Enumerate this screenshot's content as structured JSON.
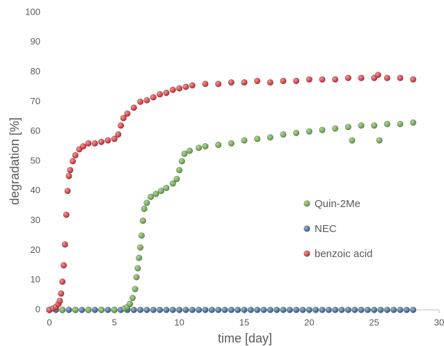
{
  "chart_data": {
    "type": "scatter",
    "xlabel": "time [day]",
    "ylabel": "degradation [%]",
    "xlim": [
      0,
      30
    ],
    "xticks": [
      0,
      5,
      10,
      15,
      20,
      25,
      30
    ],
    "ylim": [
      0,
      100
    ],
    "yticks": [
      0,
      10,
      20,
      30,
      40,
      50,
      60,
      70,
      80,
      90,
      100
    ],
    "grid": false,
    "legend": "center-right",
    "series": [
      {
        "name": "Quin-2Me",
        "color": "#5b9b3d",
        "x": [
          0,
          1,
          2,
          3,
          4,
          5,
          5.8,
          6.0,
          6.2,
          6.4,
          6.6,
          6.7,
          6.8,
          6.9,
          7.0,
          7.1,
          7.2,
          7.3,
          7.5,
          7.8,
          8.2,
          8.6,
          9,
          9.5,
          9.8,
          10,
          10.2,
          10.4,
          10.8,
          11.5,
          12,
          13,
          14,
          15,
          16,
          17,
          18,
          19,
          20,
          21,
          22,
          23,
          23.3,
          24,
          25,
          25.4,
          26,
          27,
          28
        ],
        "values": [
          0,
          0,
          0,
          0,
          0,
          0,
          0.5,
          1,
          2,
          4,
          7,
          11,
          14,
          17.5,
          21,
          25,
          30,
          34,
          36,
          38,
          39,
          40,
          41,
          42.5,
          44,
          47,
          50,
          52.5,
          53.5,
          54.5,
          55,
          55.5,
          56,
          57,
          57.5,
          58,
          59,
          59.5,
          60,
          60.5,
          61,
          61.5,
          57,
          62,
          62,
          57,
          62.5,
          62.5,
          63
        ]
      },
      {
        "name": "NEC",
        "color": "#2f5b8d",
        "x": [
          0,
          0.5,
          1,
          1.5,
          2,
          2.5,
          3,
          3.5,
          4,
          4.5,
          5,
          5.5,
          6,
          6.5,
          7,
          7.5,
          8,
          8.5,
          9,
          9.5,
          10,
          10.5,
          11,
          11.5,
          12,
          12.5,
          13,
          13.5,
          14,
          14.5,
          15,
          15.5,
          16,
          16.5,
          17,
          17.5,
          18,
          18.5,
          19,
          19.5,
          20,
          20.5,
          21,
          21.5,
          22,
          22.5,
          23,
          23.5,
          24,
          24.5,
          25,
          25.5,
          26,
          26.5,
          27,
          27.5,
          28
        ],
        "values": [
          0,
          0,
          0,
          0,
          0,
          0,
          0,
          0,
          0,
          0,
          0,
          0,
          0,
          0,
          0,
          0,
          0,
          0,
          0,
          0,
          0,
          0,
          0,
          0,
          0,
          0,
          0,
          0,
          0,
          0,
          0,
          0,
          0,
          0,
          0,
          0,
          0,
          0,
          0,
          0,
          0,
          0,
          0,
          0,
          0,
          0,
          0,
          0,
          0,
          0,
          0,
          0,
          0,
          0,
          0,
          0,
          0
        ]
      },
      {
        "name": "benzoic acid",
        "color": "#c9262b",
        "x": [
          0,
          0.3,
          0.5,
          0.7,
          0.8,
          0.9,
          1.0,
          1.1,
          1.2,
          1.3,
          1.4,
          1.5,
          1.6,
          1.8,
          2.0,
          2.3,
          2.6,
          3,
          3.5,
          4,
          4.5,
          5,
          5.3,
          5.5,
          5.7,
          6,
          6.5,
          7,
          7.5,
          8,
          8.5,
          9,
          9.5,
          10,
          10.5,
          11,
          12,
          13,
          14,
          15,
          16,
          17,
          18,
          19,
          20,
          21,
          22,
          23,
          24,
          25,
          25.3,
          26,
          27,
          28
        ],
        "values": [
          0,
          0.5,
          1,
          2,
          3,
          5.5,
          9.5,
          15,
          22,
          32,
          40,
          45,
          47,
          50,
          52,
          54,
          55,
          56,
          56,
          56.5,
          57,
          57.5,
          59,
          62,
          64.5,
          66,
          68,
          70,
          70.5,
          71.5,
          72.5,
          73,
          74,
          74.5,
          75,
          75.5,
          76,
          76,
          76.5,
          76.5,
          77,
          76.5,
          77,
          77,
          77.5,
          77.5,
          77.5,
          78,
          78,
          78,
          79,
          78,
          78,
          77.5
        ]
      }
    ]
  }
}
